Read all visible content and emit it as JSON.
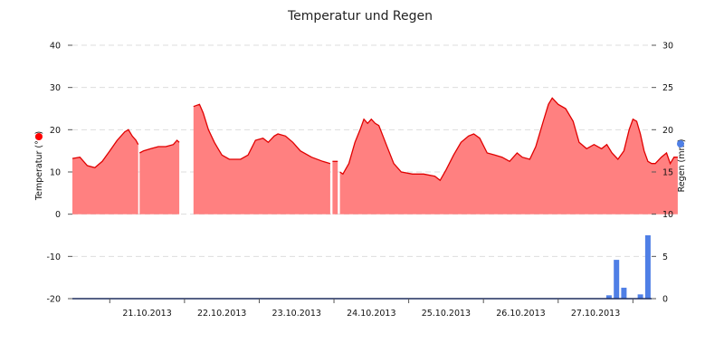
{
  "chart_data": {
    "type": "area",
    "title": "Temperatur und Regen",
    "y_left": {
      "label": "Temperatur (°C)",
      "range": [
        -20,
        40
      ],
      "ticks": [
        -20,
        -10,
        0,
        10,
        20,
        30,
        40
      ],
      "marker_color": "#ff0000"
    },
    "y_right": {
      "label": "Regen (mm)",
      "range": [
        0,
        30
      ],
      "ticks": [
        0,
        5,
        10,
        15,
        20,
        25,
        30
      ],
      "marker_color": "#4f7fe6"
    },
    "x_axis": {
      "range_days": [
        20.5,
        28.25
      ],
      "day_labels": [
        "21.10.2013",
        "22.10.2013",
        "23.10.2013",
        "24.10.2013",
        "25.10.2013",
        "26.10.2013",
        "27.10.2013"
      ],
      "label_days": [
        21,
        22,
        23,
        24,
        25,
        26,
        27
      ]
    },
    "grid": true,
    "series": [
      {
        "name": "Temperatur",
        "axis": "left",
        "type": "area",
        "color": "#ff8080",
        "line_color": "#e00000",
        "segments": [
          [
            [
              20.5,
              13.2
            ],
            [
              20.6,
              13.5
            ],
            [
              20.7,
              11.5
            ],
            [
              20.8,
              11.0
            ],
            [
              20.9,
              12.5
            ],
            [
              21.0,
              15.0
            ],
            [
              21.1,
              17.5
            ],
            [
              21.2,
              19.5
            ],
            [
              21.25,
              20.0
            ],
            [
              21.3,
              18.5
            ],
            [
              21.35,
              17.5
            ],
            [
              21.38,
              16.5
            ]
          ],
          [
            [
              21.4,
              14.5
            ],
            [
              21.45,
              15.0
            ],
            [
              21.55,
              15.5
            ],
            [
              21.65,
              16.0
            ],
            [
              21.75,
              16.0
            ],
            [
              21.85,
              16.5
            ],
            [
              21.9,
              17.5
            ],
            [
              21.93,
              17.0
            ]
          ],
          [
            [
              22.12,
              25.5
            ],
            [
              22.2,
              26.0
            ],
            [
              22.25,
              24.0
            ],
            [
              22.32,
              20.0
            ],
            [
              22.4,
              17.0
            ],
            [
              22.45,
              15.5
            ],
            [
              22.5,
              14.0
            ],
            [
              22.6,
              13.0
            ],
            [
              22.75,
              13.0
            ],
            [
              22.85,
              14.0
            ],
            [
              22.95,
              17.5
            ],
            [
              23.05,
              18.0
            ],
            [
              23.12,
              17.0
            ],
            [
              23.2,
              18.5
            ],
            [
              23.25,
              19.0
            ],
            [
              23.35,
              18.5
            ],
            [
              23.45,
              17.0
            ],
            [
              23.55,
              15.0
            ],
            [
              23.7,
              13.5
            ],
            [
              23.85,
              12.5
            ],
            [
              23.95,
              12.0
            ]
          ],
          [
            [
              23.98,
              12.5
            ],
            [
              24.05,
              12.5
            ]
          ],
          [
            [
              24.08,
              10.0
            ],
            [
              24.12,
              9.5
            ],
            [
              24.2,
              12.0
            ],
            [
              24.28,
              17.0
            ],
            [
              24.35,
              20.0
            ],
            [
              24.4,
              22.5
            ],
            [
              24.45,
              21.5
            ],
            [
              24.5,
              22.5
            ],
            [
              24.55,
              21.5
            ],
            [
              24.6,
              21.0
            ],
            [
              24.7,
              16.5
            ],
            [
              24.8,
              12.0
            ],
            [
              24.9,
              10.0
            ],
            [
              25.05,
              9.5
            ],
            [
              25.2,
              9.5
            ],
            [
              25.35,
              9.0
            ],
            [
              25.42,
              8.0
            ],
            [
              25.5,
              10.5
            ],
            [
              25.6,
              14.0
            ],
            [
              25.7,
              17.0
            ],
            [
              25.8,
              18.5
            ],
            [
              25.87,
              19.0
            ],
            [
              25.95,
              18.0
            ],
            [
              26.05,
              14.5
            ],
            [
              26.15,
              14.0
            ],
            [
              26.25,
              13.5
            ],
            [
              26.35,
              12.5
            ],
            [
              26.45,
              14.5
            ],
            [
              26.52,
              13.5
            ],
            [
              26.62,
              13.0
            ],
            [
              26.7,
              16.0
            ],
            [
              26.8,
              22.0
            ],
            [
              26.87,
              26.0
            ],
            [
              26.92,
              27.5
            ],
            [
              27.0,
              26.0
            ],
            [
              27.1,
              25.0
            ],
            [
              27.2,
              22.0
            ],
            [
              27.28,
              17.0
            ],
            [
              27.38,
              15.5
            ],
            [
              27.48,
              16.5
            ],
            [
              27.58,
              15.5
            ],
            [
              27.65,
              16.5
            ],
            [
              27.72,
              14.5
            ],
            [
              27.8,
              13.0
            ],
            [
              27.88,
              15.0
            ],
            [
              27.95,
              20.0
            ],
            [
              28.0,
              22.5
            ],
            [
              28.05,
              22.0
            ],
            [
              28.1,
              19.0
            ],
            [
              28.15,
              15.0
            ],
            [
              28.2,
              12.5
            ],
            [
              28.25,
              12.0
            ],
            [
              28.3,
              12.0
            ],
            [
              28.38,
              13.5
            ],
            [
              28.45,
              14.5
            ],
            [
              28.5,
              12.0
            ],
            [
              28.55,
              13.5
            ],
            [
              28.6,
              13.5
            ]
          ]
        ]
      },
      {
        "name": "Regen",
        "axis": "right",
        "type": "bar",
        "color": "#4f7fe6",
        "points": [
          [
            27.68,
            0.4
          ],
          [
            27.78,
            4.6
          ],
          [
            27.88,
            1.3
          ],
          [
            28.1,
            0.5
          ],
          [
            28.2,
            7.5
          ]
        ]
      }
    ]
  }
}
